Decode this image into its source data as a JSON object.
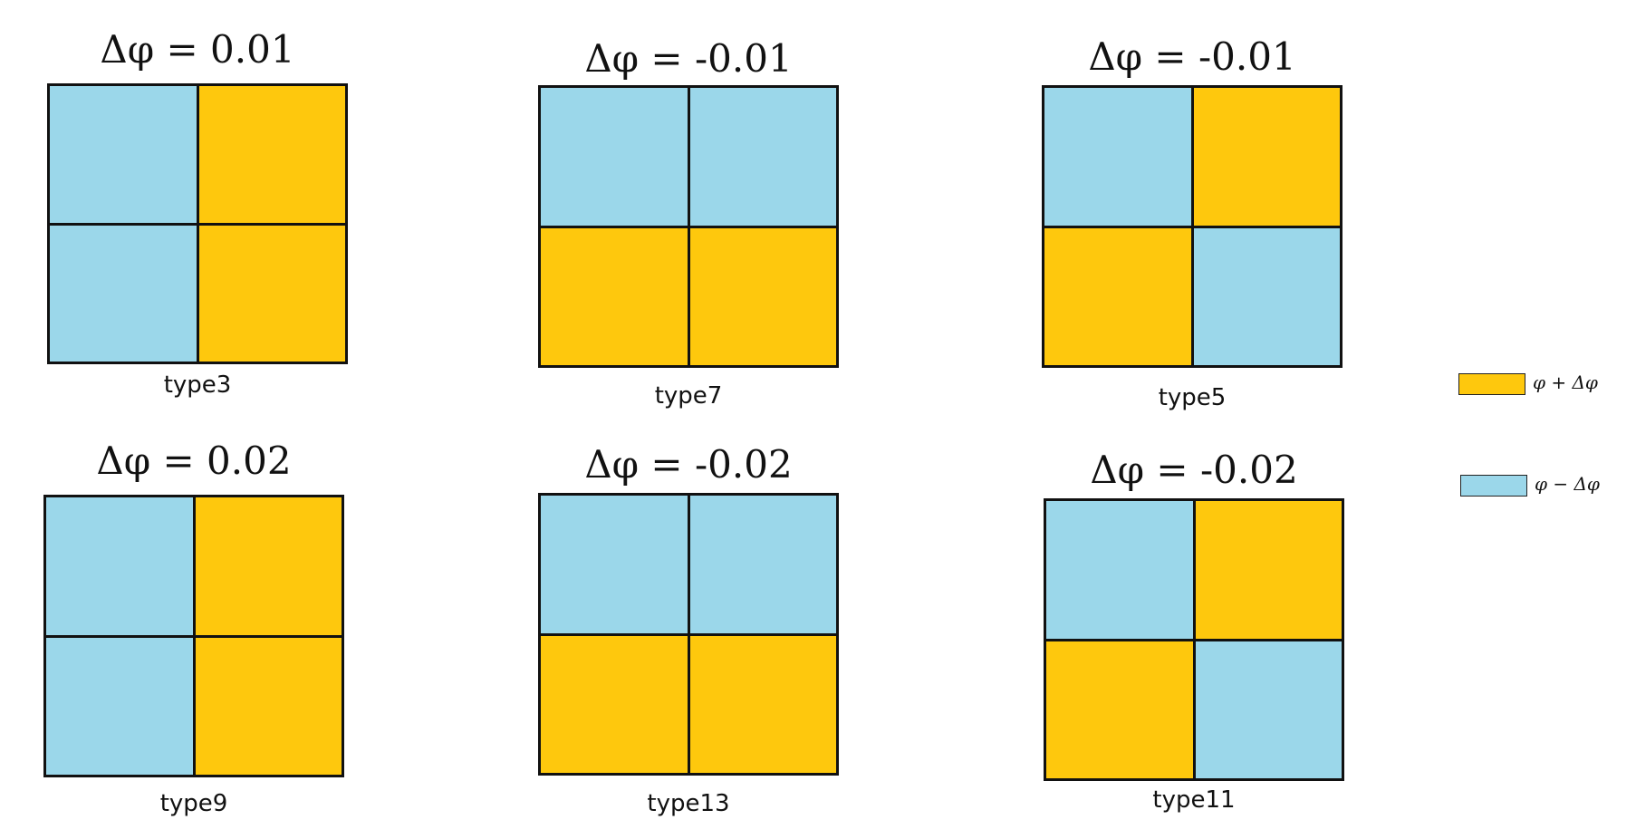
{
  "colors": {
    "plus": "#FEC80D",
    "minus": "#9BD7EA",
    "border": "#111111"
  },
  "panels": [
    {
      "title": "Δφ = 0.01",
      "label": "type3",
      "cells": [
        "minus",
        "plus",
        "minus",
        "plus"
      ]
    },
    {
      "title": "Δφ = -0.01",
      "label": "type7",
      "cells": [
        "minus",
        "minus",
        "plus",
        "plus"
      ]
    },
    {
      "title": "Δφ = -0.01",
      "label": "type5",
      "cells": [
        "minus",
        "plus",
        "plus",
        "minus"
      ]
    },
    {
      "title": "Δφ = 0.02",
      "label": "type9",
      "cells": [
        "minus",
        "plus",
        "minus",
        "plus"
      ]
    },
    {
      "title": "Δφ = -0.02",
      "label": "type13",
      "cells": [
        "minus",
        "minus",
        "plus",
        "plus"
      ]
    },
    {
      "title": "Δφ = -0.02",
      "label": "type11",
      "cells": [
        "minus",
        "plus",
        "plus",
        "minus"
      ]
    }
  ],
  "legend": [
    {
      "color_key": "plus",
      "text": "φ + Δφ"
    },
    {
      "color_key": "minus",
      "text": "φ − Δφ"
    }
  ]
}
